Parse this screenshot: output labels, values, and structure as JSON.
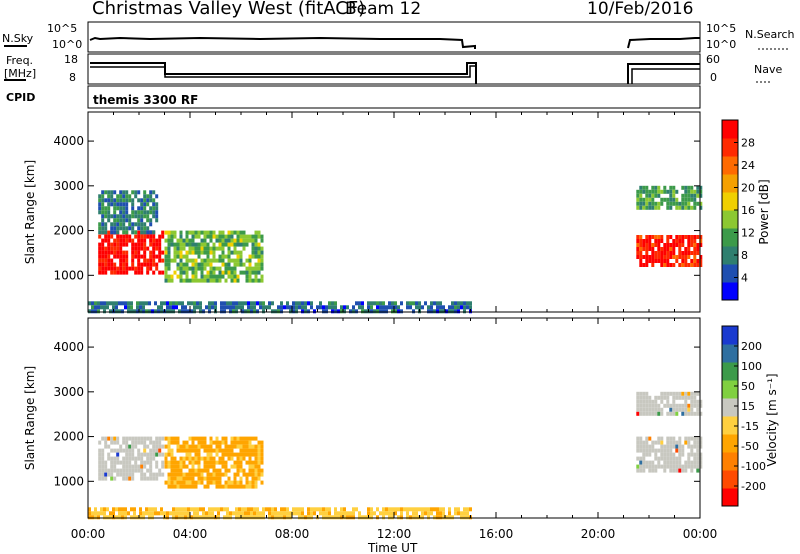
{
  "header": {
    "station": "Christmas Valley West (fitACF)",
    "beam": "Beam 12",
    "date": "10/Feb/2016"
  },
  "top_panels": {
    "nsky_label": "N.Sky",
    "nsearch_label": "N.Search",
    "nsky_ticks": [
      "10^5",
      "10^0"
    ],
    "nsearch_ticks": [
      "10^5",
      "10^0"
    ],
    "freq_label_1": "Freq.",
    "freq_label_2": "[MHz]",
    "freq_ticks": [
      "18",
      "8"
    ],
    "nave_label": "Nave",
    "nave_ticks": [
      "60",
      "0"
    ],
    "cpid_label": "CPID",
    "cpid_text": "themis 3300 RF"
  },
  "colors": {
    "power_scale": [
      "#0000ff",
      "#1f4fb0",
      "#2f7f6f",
      "#3c9a4a",
      "#8cc832",
      "#f0d000",
      "#f5a000",
      "#ff6a00",
      "#ff2a00",
      "#ff0000"
    ],
    "velocity_scale": [
      "#ff0000",
      "#ff4a00",
      "#ff8000",
      "#ffa500",
      "#ffd040",
      "#c8c8c0",
      "#80d040",
      "#3c9a4a",
      "#2f6fa0",
      "#1a3ad0"
    ],
    "ground_scatter": "#c8c8c0"
  },
  "chart_data": [
    {
      "type": "heatmap",
      "title": "Power",
      "ylabel": "Slant Range [km]",
      "xlabel": "Time UT",
      "x_ticks": [
        "00:00",
        "04:00",
        "08:00",
        "12:00",
        "16:00",
        "20:00",
        "00:00"
      ],
      "y_ticks": [
        "1000",
        "2000",
        "3000",
        "4000"
      ],
      "ylim": [
        180,
        4650
      ],
      "xlim_hours": [
        0,
        24
      ],
      "colorbar_label": "Power [dB]",
      "colorbar_ticks": [
        "28",
        "24",
        "20",
        "16",
        "12",
        "8",
        "4"
      ],
      "regions": [
        {
          "t0": 0.4,
          "t1": 2.9,
          "r0": 1100,
          "r1": 2000,
          "level": 0.95
        },
        {
          "t0": 0.4,
          "t1": 2.7,
          "r0": 2000,
          "r1": 2900,
          "level": 0.25
        },
        {
          "t0": 3.0,
          "t1": 6.8,
          "r0": 900,
          "r1": 2000,
          "level": 0.4
        },
        {
          "t0": 0.0,
          "t1": 15.0,
          "r0": 200,
          "r1": 420,
          "level": 0.2
        },
        {
          "t0": 21.5,
          "t1": 24.0,
          "r0": 1200,
          "r1": 1900,
          "level": 0.9
        },
        {
          "t0": 21.5,
          "t1": 24.0,
          "r0": 2500,
          "r1": 3000,
          "level": 0.35
        }
      ]
    },
    {
      "type": "heatmap",
      "title": "Velocity",
      "ylabel": "Slant Range [km]",
      "xlabel": "Time UT",
      "x_ticks": [
        "00:00",
        "04:00",
        "08:00",
        "12:00",
        "16:00",
        "20:00",
        "00:00"
      ],
      "y_ticks": [
        "1000",
        "2000",
        "3000",
        "4000"
      ],
      "ylim": [
        180,
        4650
      ],
      "xlim_hours": [
        0,
        24
      ],
      "colorbar_label": "Velocity [m s⁻¹]",
      "colorbar_ticks": [
        "200",
        "100",
        "50",
        "15",
        "-15",
        "-50",
        "-100",
        "-200"
      ],
      "regions": [
        {
          "t0": 0.4,
          "t1": 2.9,
          "r0": 1100,
          "r1": 2000,
          "level": "gs"
        },
        {
          "t0": 3.0,
          "t1": 6.8,
          "r0": 900,
          "r1": 2000,
          "level": -60
        },
        {
          "t0": 0.0,
          "t1": 15.0,
          "r0": 200,
          "r1": 420,
          "level": -40
        },
        {
          "t0": 21.5,
          "t1": 24.0,
          "r0": 1200,
          "r1": 2000,
          "level": "gs"
        },
        {
          "t0": 21.5,
          "t1": 24.0,
          "r0": 2500,
          "r1": 3000,
          "level": "gs"
        }
      ]
    }
  ]
}
